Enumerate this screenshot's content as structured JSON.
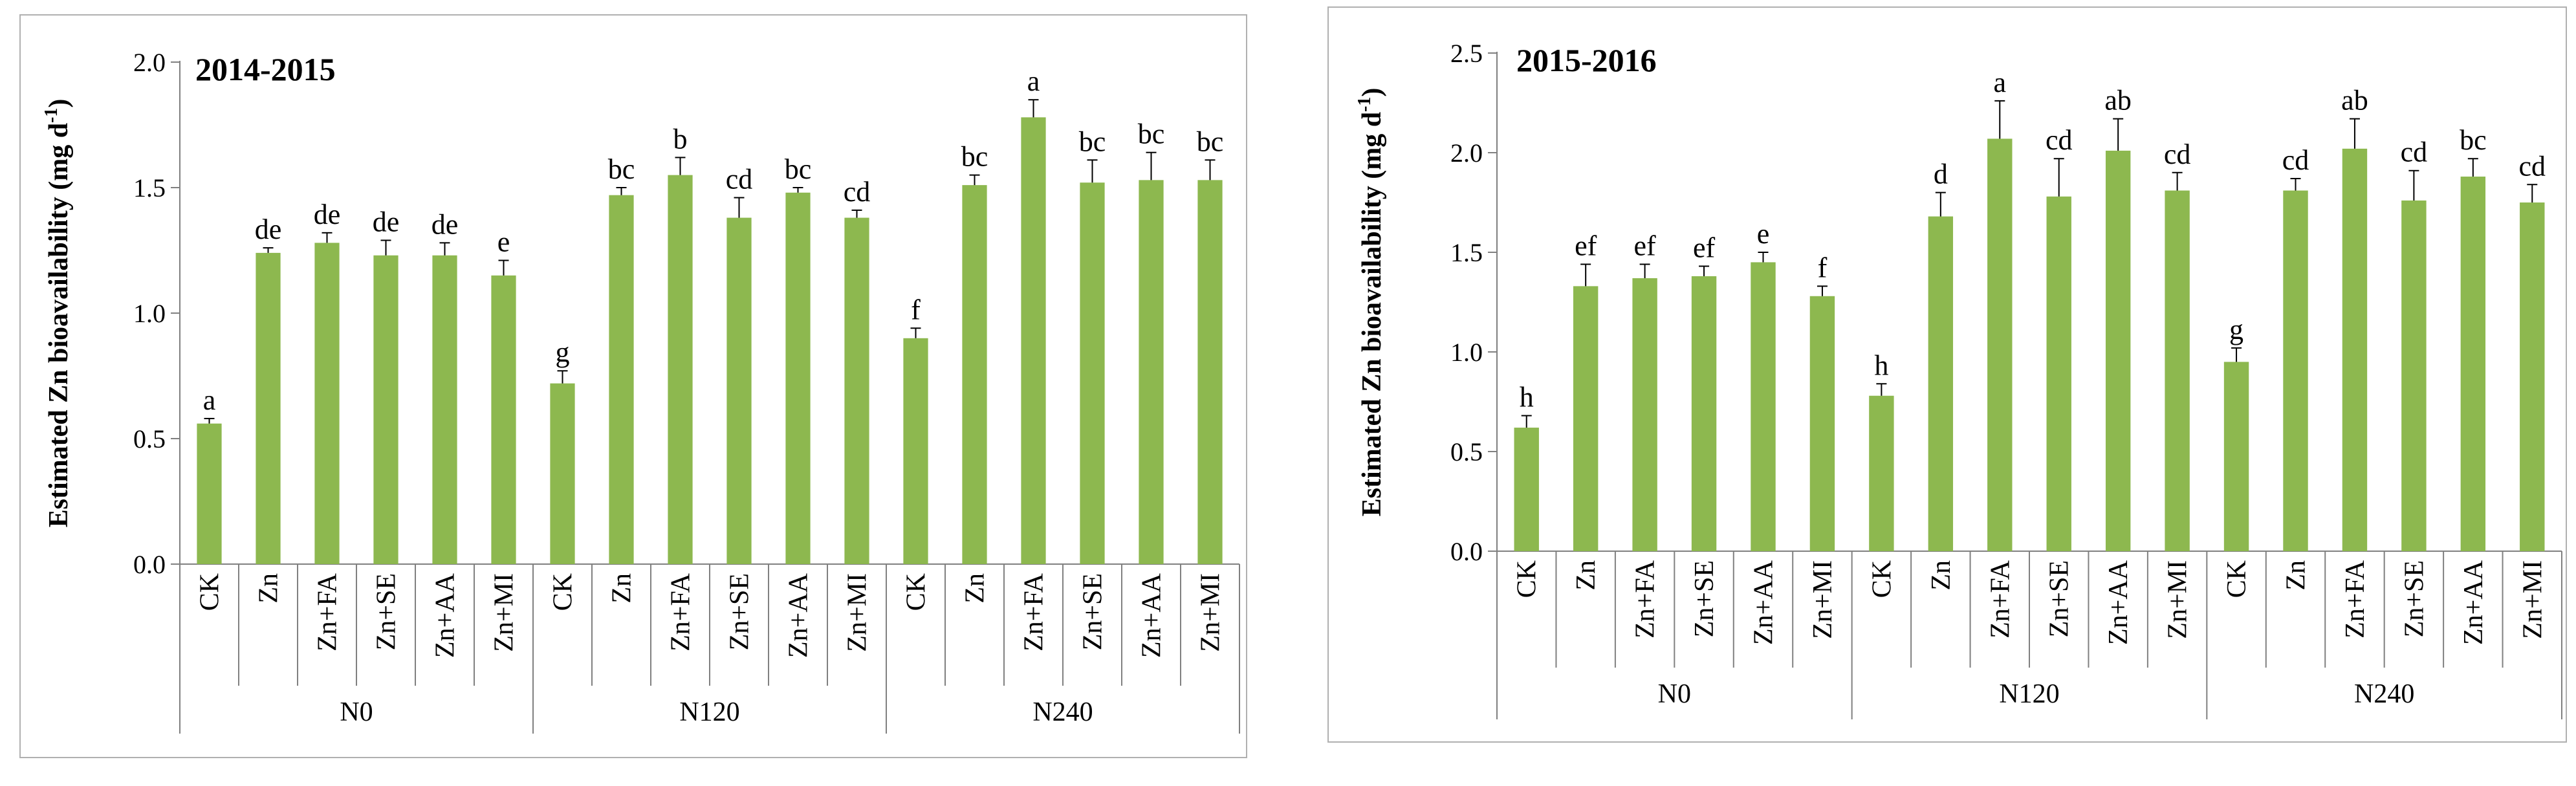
{
  "bar_color": "#8DB84F",
  "error_color": "#000000",
  "chart_data": [
    {
      "type": "bar",
      "title": "2014-2015",
      "ylabel": "Estimated Zn bioavailability  (mg d",
      "ylabel_sup": "-1",
      "ylabel_tail": ")",
      "ylim": [
        0,
        2.0
      ],
      "yticks": [
        "0.0",
        "0.5",
        "1.0",
        "1.5",
        "2.0"
      ],
      "categories": [
        "CK",
        "Zn",
        "Zn+FA",
        "Zn+SE",
        "Zn+AA",
        "Zn+MI",
        "CK",
        "Zn",
        "Zn+FA",
        "Zn+SE",
        "Zn+AA",
        "Zn+MI",
        "CK",
        "Zn",
        "Zn+FA",
        "Zn+SE",
        "Zn+AA",
        "Zn+MI"
      ],
      "groups": [
        "N0",
        "N120",
        "N240"
      ],
      "values": [
        0.56,
        1.24,
        1.28,
        1.23,
        1.23,
        1.15,
        0.72,
        1.47,
        1.55,
        1.38,
        1.48,
        1.38,
        0.9,
        1.51,
        1.78,
        1.52,
        1.53,
        1.53
      ],
      "errors": [
        0.02,
        0.02,
        0.04,
        0.06,
        0.05,
        0.06,
        0.05,
        0.03,
        0.07,
        0.08,
        0.02,
        0.03,
        0.04,
        0.04,
        0.07,
        0.09,
        0.11,
        0.08
      ],
      "letters": [
        "a",
        "de",
        "de",
        "de",
        "de",
        "e",
        "g",
        "bc",
        "b",
        "cd",
        "bc",
        "cd",
        "f",
        "bc",
        "a",
        "bc",
        "bc",
        "bc"
      ]
    },
    {
      "type": "bar",
      "title": "2015-2016",
      "ylabel": "Estimated Zn bioavailability  (mg d",
      "ylabel_sup": "-1",
      "ylabel_tail": ")",
      "ylim": [
        0,
        2.5
      ],
      "yticks": [
        "0.0",
        "0.5",
        "1.0",
        "1.5",
        "2.0",
        "2.5"
      ],
      "categories": [
        "CK",
        "Zn",
        "Zn+FA",
        "Zn+SE",
        "Zn+AA",
        "Zn+MI",
        "CK",
        "Zn",
        "Zn+FA",
        "Zn+SE",
        "Zn+AA",
        "Zn+MI",
        "CK",
        "Zn",
        "Zn+FA",
        "Zn+SE",
        "Zn+AA",
        "Zn+MI"
      ],
      "groups": [
        "N0",
        "N120",
        "N240"
      ],
      "values": [
        0.62,
        1.33,
        1.37,
        1.38,
        1.45,
        1.28,
        0.78,
        1.68,
        2.07,
        1.78,
        2.01,
        1.81,
        0.95,
        1.81,
        2.02,
        1.76,
        1.88,
        1.75
      ],
      "errors": [
        0.06,
        0.11,
        0.07,
        0.05,
        0.05,
        0.05,
        0.06,
        0.12,
        0.19,
        0.19,
        0.16,
        0.09,
        0.07,
        0.06,
        0.15,
        0.15,
        0.09,
        0.09
      ],
      "letters": [
        "h",
        "ef",
        "ef",
        "ef",
        "e",
        "f",
        "h",
        "d",
        "a",
        "cd",
        "ab",
        "cd",
        "g",
        "cd",
        "ab",
        "cd",
        "bc",
        "cd"
      ]
    }
  ]
}
